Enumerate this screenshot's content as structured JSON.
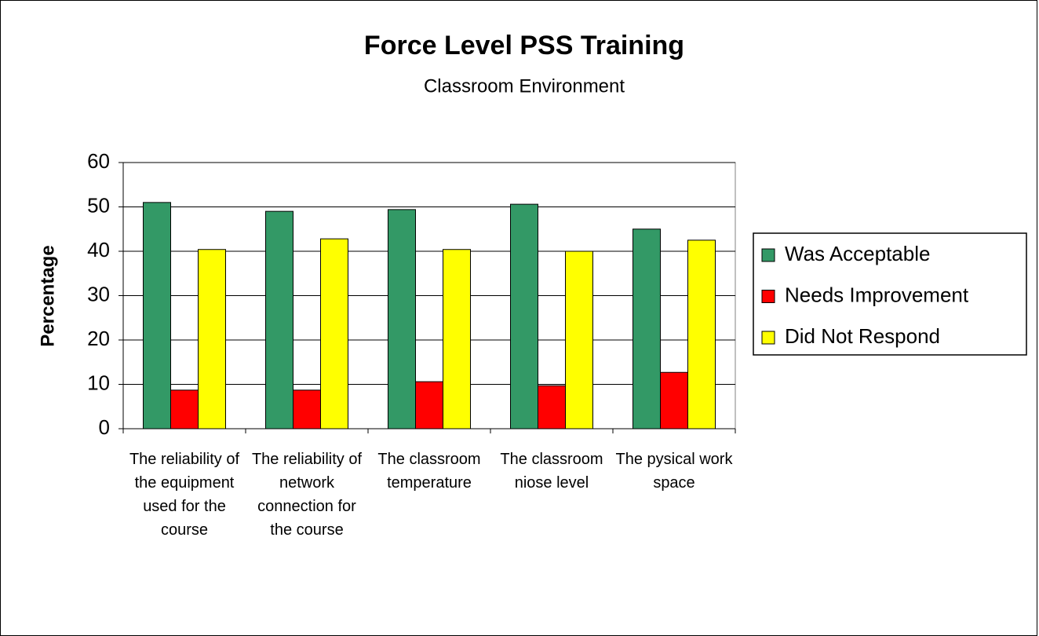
{
  "chart_data": {
    "type": "bar",
    "title": "Force Level PSS Training",
    "subtitle": "Classroom Environment",
    "y_label": "Percentage",
    "categories": [
      "The reliability of the equipment used for the course",
      "The reliability of network connection for the course",
      "The classroom temperature",
      "The classroom niose level",
      "The pysical work space"
    ],
    "series": [
      {
        "name": "Was Acceptable",
        "color": "#339966",
        "values": [
          51.0,
          49.0,
          49.4,
          50.6,
          45.0
        ]
      },
      {
        "name": "Needs Improvement",
        "color": "#ff0000",
        "values": [
          8.7,
          8.7,
          10.6,
          9.7,
          12.7
        ]
      },
      {
        "name": "Did Not Respond",
        "color": "#ffff00",
        "values": [
          40.4,
          42.8,
          40.4,
          40.0,
          42.5
        ]
      }
    ],
    "ylim": [
      0,
      60
    ],
    "yticks": [
      0,
      10,
      20,
      30,
      40,
      50,
      60
    ],
    "grid": true,
    "legend": "right"
  }
}
